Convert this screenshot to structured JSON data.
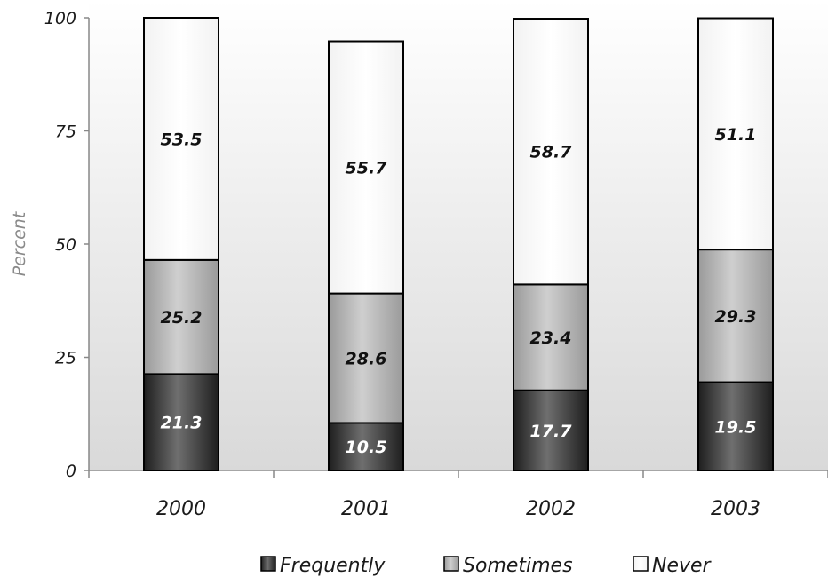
{
  "chart_data": {
    "type": "bar",
    "stacked": true,
    "categories": [
      "2000",
      "2001",
      "2002",
      "2003"
    ],
    "series": [
      {
        "name": "Frequently",
        "values": [
          21.3,
          10.5,
          17.7,
          19.5
        ],
        "color": "#4a4a4a",
        "label_color": "#ffffff"
      },
      {
        "name": "Sometimes",
        "values": [
          25.2,
          28.6,
          23.4,
          29.3
        ],
        "color": "#b4b4b4",
        "label_color": "#111111"
      },
      {
        "name": "Never",
        "values": [
          53.5,
          55.7,
          58.7,
          51.1
        ],
        "color": "#ffffff",
        "label_color": "#111111"
      }
    ],
    "ylabel": "Percent",
    "xlabel": "",
    "ylim": [
      0,
      100
    ],
    "yticks": [
      "0",
      "25",
      "50",
      "75",
      "100"
    ],
    "legend_position": "bottom",
    "grid": false,
    "background": "gradient-gray"
  }
}
